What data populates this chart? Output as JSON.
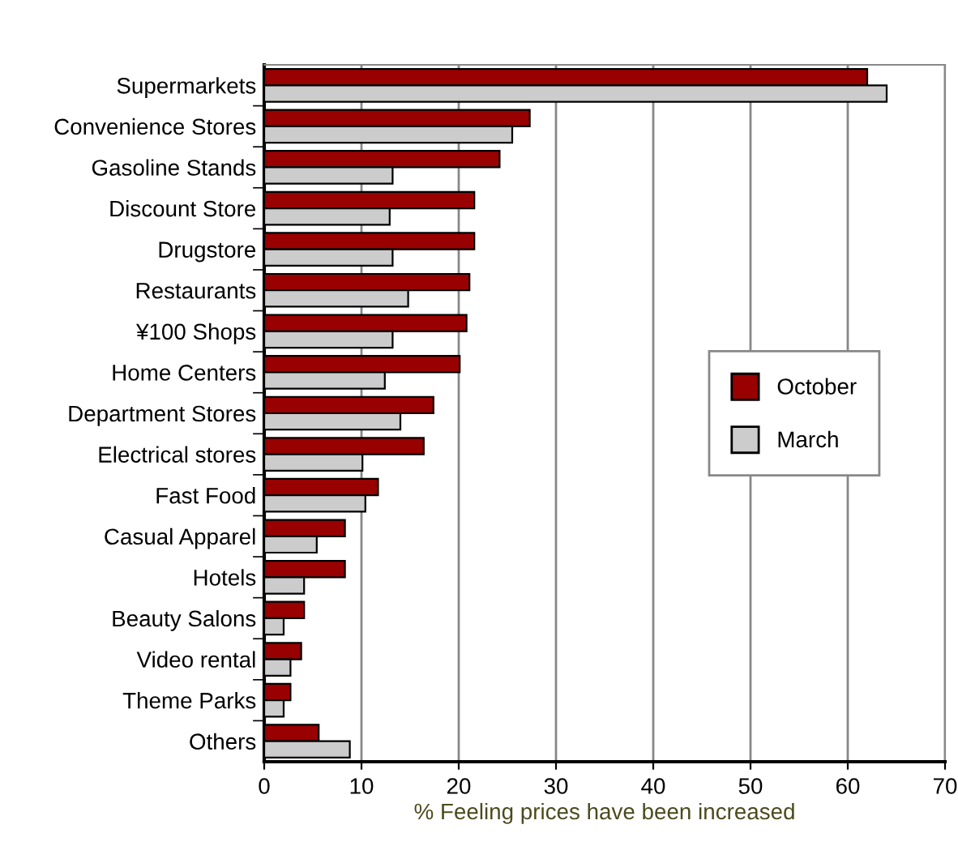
{
  "chart_data": {
    "type": "bar",
    "orientation": "horizontal",
    "xlabel": "% Feeling prices have been increased",
    "categories": [
      "Supermarkets",
      "Convenience Stores",
      "Gasoline Stands",
      "Discount Store",
      "Drugstore",
      "Restaurants",
      "¥100 Shops",
      "Home Centers",
      "Department Stores",
      "Electrical stores",
      "Fast Food",
      "Casual Apparel",
      "Hotels",
      "Beauty Salons",
      "Video rental",
      "Theme Parks",
      "Others"
    ],
    "series": [
      {
        "name": "October",
        "color": "#990000",
        "values": [
          62,
          27.3,
          24.2,
          21.6,
          21.6,
          21.1,
          20.8,
          20.1,
          17.4,
          16.4,
          11.7,
          8.3,
          8.3,
          4.1,
          3.8,
          2.7,
          5.6
        ]
      },
      {
        "name": "March",
        "color": "#cccccc",
        "values": [
          64,
          25.5,
          13.2,
          12.9,
          13.2,
          14.8,
          13.2,
          12.4,
          14.0,
          10.1,
          10.4,
          5.4,
          4.1,
          2.0,
          2.7,
          2.0,
          8.8
        ]
      }
    ],
    "xlim": [
      0,
      70
    ],
    "xticks": [
      0,
      10,
      20,
      30,
      40,
      50,
      60,
      70
    ],
    "grid": "x",
    "legend": "center right"
  }
}
